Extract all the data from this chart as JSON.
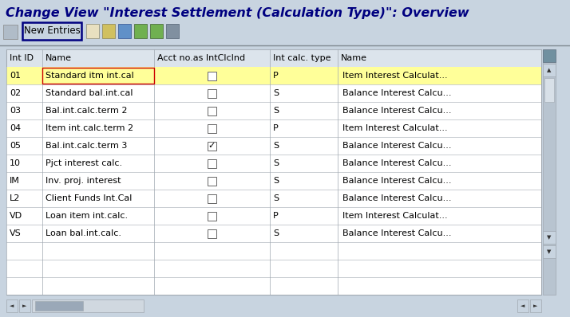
{
  "title": "Change View \"Interest Settlement (Calculation Type)\": Overview",
  "bg_color": "#c8d4e0",
  "white": "#ffffff",
  "new_entries_text": "New Entries",
  "columns": [
    "Int ID",
    "Name",
    "Acct no.as IntClcInd",
    "Int calc. type",
    "Name"
  ],
  "rows": [
    [
      "01",
      "Standard itm int.cal",
      false,
      "P",
      "Item Interest Calculat..."
    ],
    [
      "02",
      "Standard bal.int.cal",
      false,
      "S",
      "Balance Interest Calcu..."
    ],
    [
      "03",
      "Bal.int.calc.term 2",
      false,
      "S",
      "Balance Interest Calcu..."
    ],
    [
      "04",
      "Item int.calc.term 2",
      false,
      "P",
      "Item Interest Calculat..."
    ],
    [
      "05",
      "Bal.int.calc.term 3",
      true,
      "S",
      "Balance Interest Calcu..."
    ],
    [
      "10",
      "Pjct interest calc.",
      false,
      "S",
      "Balance Interest Calcu..."
    ],
    [
      "IM",
      "Inv. proj. interest",
      false,
      "S",
      "Balance Interest Calcu..."
    ],
    [
      "L2",
      "Client Funds Int.Cal",
      false,
      "S",
      "Balance Interest Calcu..."
    ],
    [
      "VD",
      "Loan item int.calc.",
      false,
      "P",
      "Item Interest Calculat..."
    ],
    [
      "VS",
      "Loan bal.int.calc.",
      false,
      "S",
      "Balance Interest Calcu..."
    ]
  ],
  "highlighted_row": 0,
  "highlight_bg": "#ffff99",
  "highlight_border": "#cc0000",
  "table_line_color": "#a0a8b0",
  "title_color": "#000080",
  "scrollbar_bg": "#b8c4d0",
  "scrollbar_face": "#c8d4e0",
  "btn_border": "#000080",
  "header_bg": "#dce4ec"
}
